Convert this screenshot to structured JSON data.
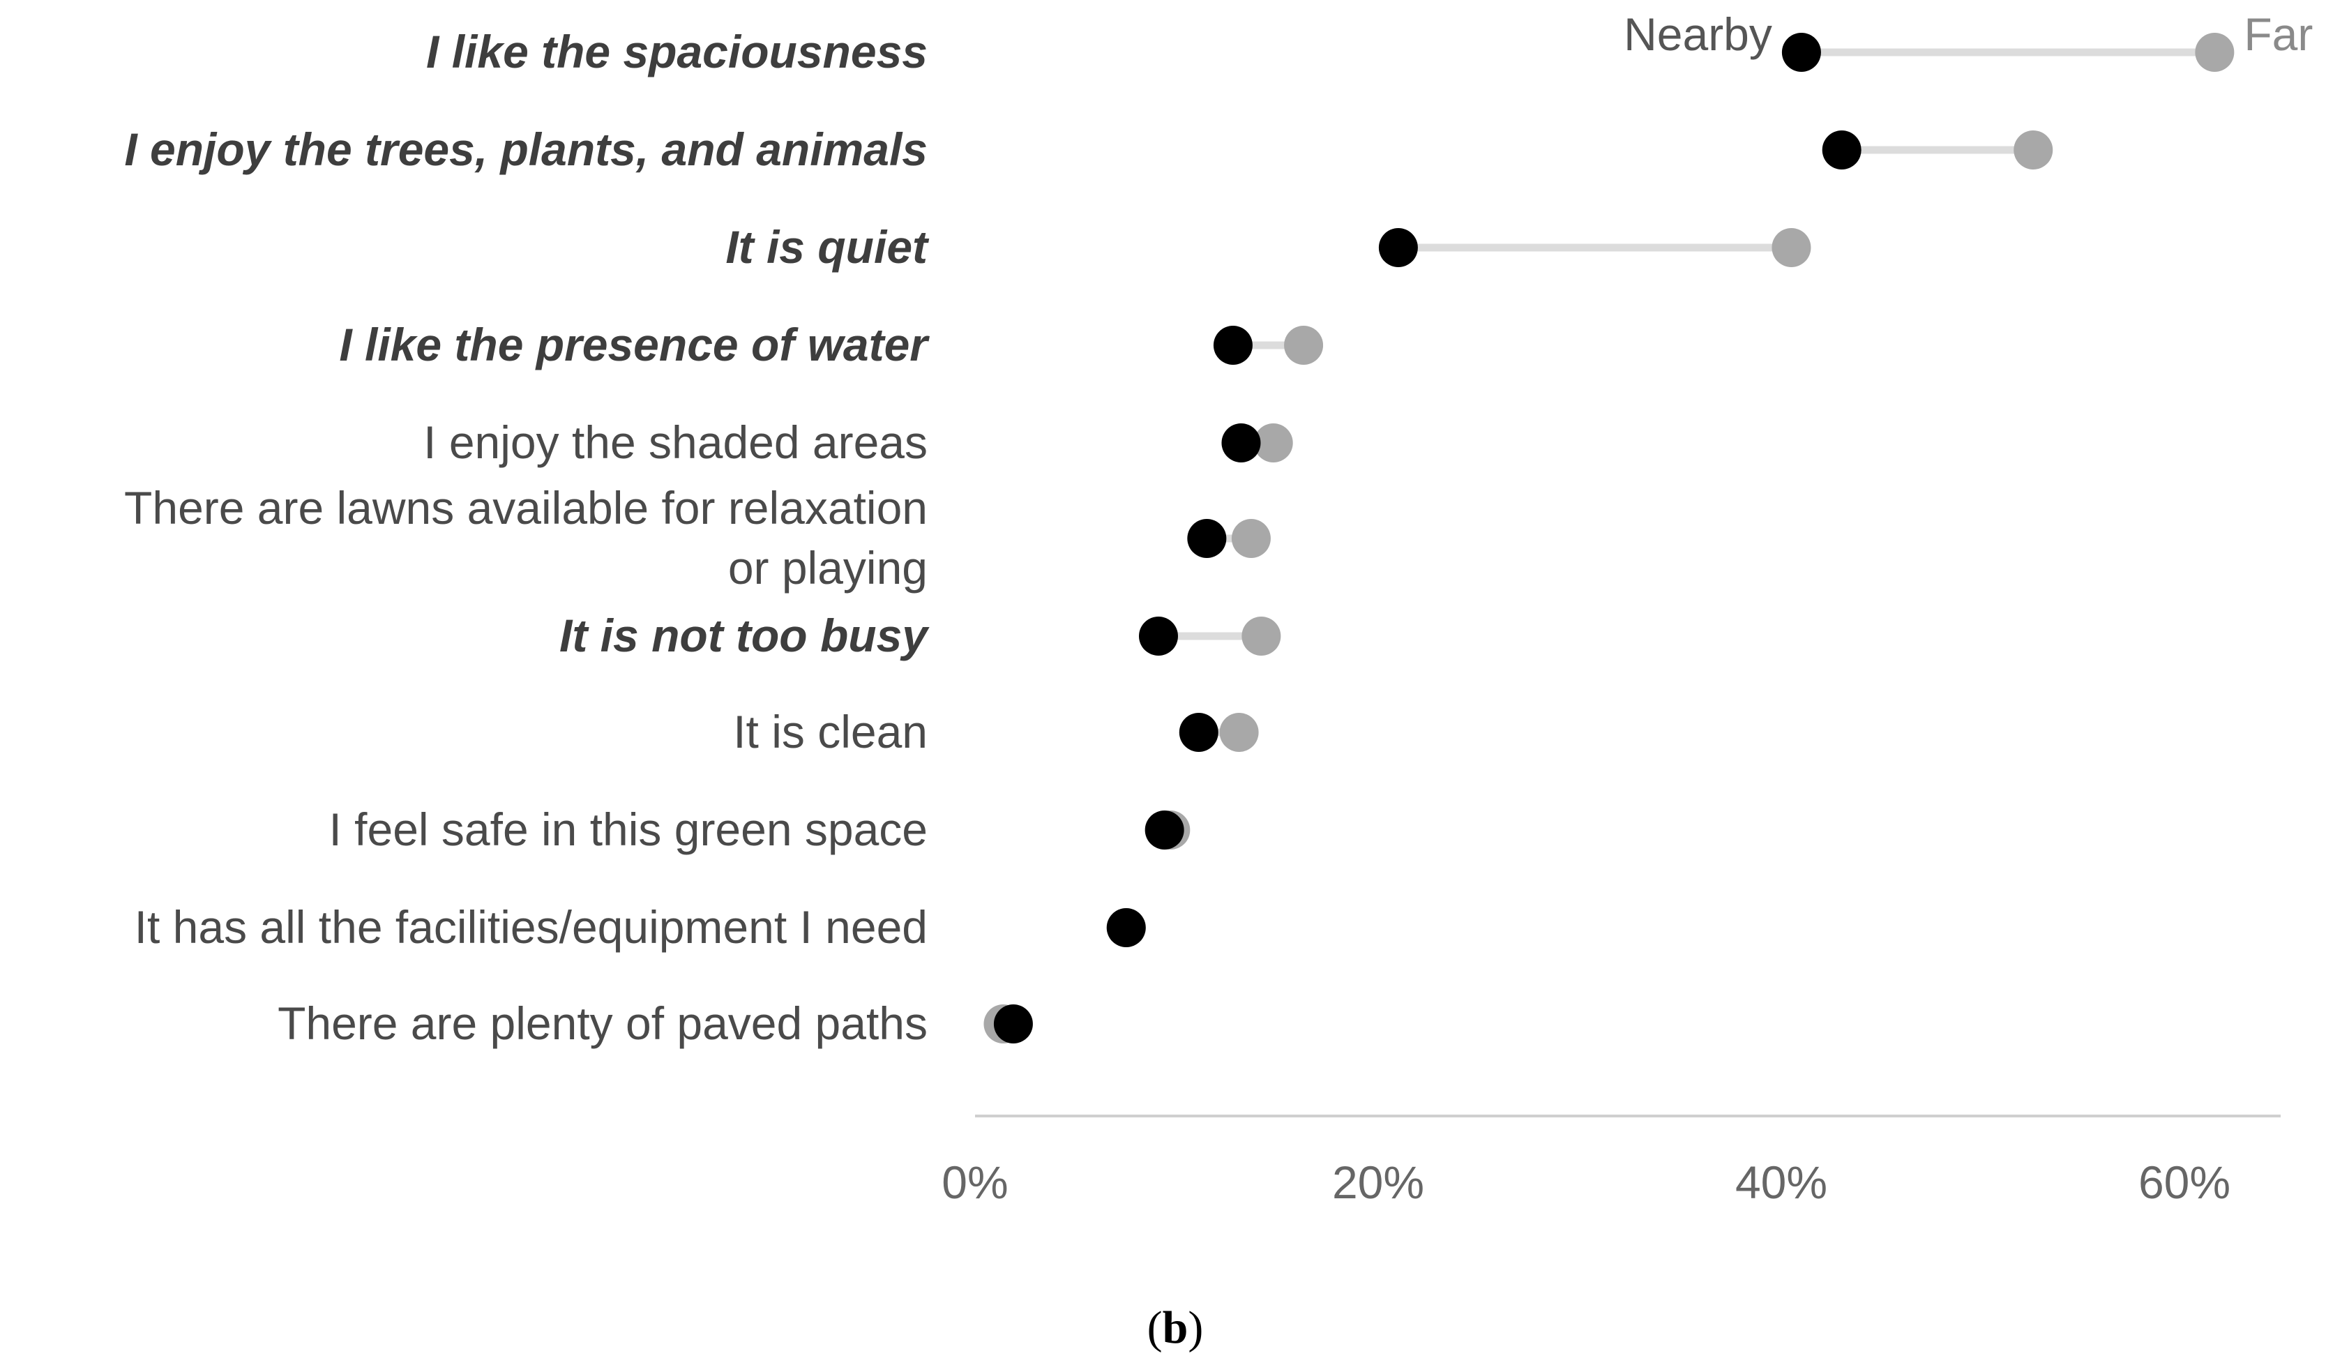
{
  "chart_data": {
    "type": "dumbbell",
    "categories": [
      {
        "label_lines": [
          "I like the spaciousness"
        ],
        "emphasized": true,
        "nearby": 41,
        "far": 61.5
      },
      {
        "label_lines": [
          "I enjoy the trees, plants, and animals"
        ],
        "emphasized": true,
        "nearby": 43,
        "far": 52.5
      },
      {
        "label_lines": [
          "It is quiet"
        ],
        "emphasized": true,
        "nearby": 21,
        "far": 40.5
      },
      {
        "label_lines": [
          "I like the presence of water"
        ],
        "emphasized": true,
        "nearby": 12.8,
        "far": 16.3
      },
      {
        "label_lines": [
          "I enjoy the shaded areas"
        ],
        "emphasized": false,
        "nearby": 13.2,
        "far": 14.8
      },
      {
        "label_lines": [
          "There are lawns available for relaxation",
          "or playing"
        ],
        "emphasized": false,
        "nearby": 11.5,
        "far": 13.7
      },
      {
        "label_lines": [
          "It is not too busy"
        ],
        "emphasized": true,
        "nearby": 9.1,
        "far": 14.2
      },
      {
        "label_lines": [
          "It is clean"
        ],
        "emphasized": false,
        "nearby": 11.1,
        "far": 13.1
      },
      {
        "label_lines": [
          "I feel safe in this green space"
        ],
        "emphasized": false,
        "nearby": 9.4,
        "far": 9.7
      },
      {
        "label_lines": [
          "It has all the facilities/equipment I need"
        ],
        "emphasized": false,
        "nearby": 7.5,
        "far": 7.5
      },
      {
        "label_lines": [
          "There are plenty of paved paths"
        ],
        "emphasized": false,
        "nearby": 1.9,
        "far": 1.4
      }
    ],
    "series": [
      {
        "name": "Nearby",
        "key": "nearby",
        "color": "#000000"
      },
      {
        "name": "Far",
        "key": "far",
        "color": "#a8a8a8"
      }
    ],
    "xticks": [
      0,
      20,
      40,
      60
    ],
    "xtick_suffix": "%",
    "xlim": [
      0,
      65
    ],
    "connector_color": "#dcdcdc",
    "axis_color": "#cfcfcf",
    "legend_placement": "inline-top"
  },
  "caption": {
    "open": "(",
    "letter": "b",
    "close": ")"
  }
}
